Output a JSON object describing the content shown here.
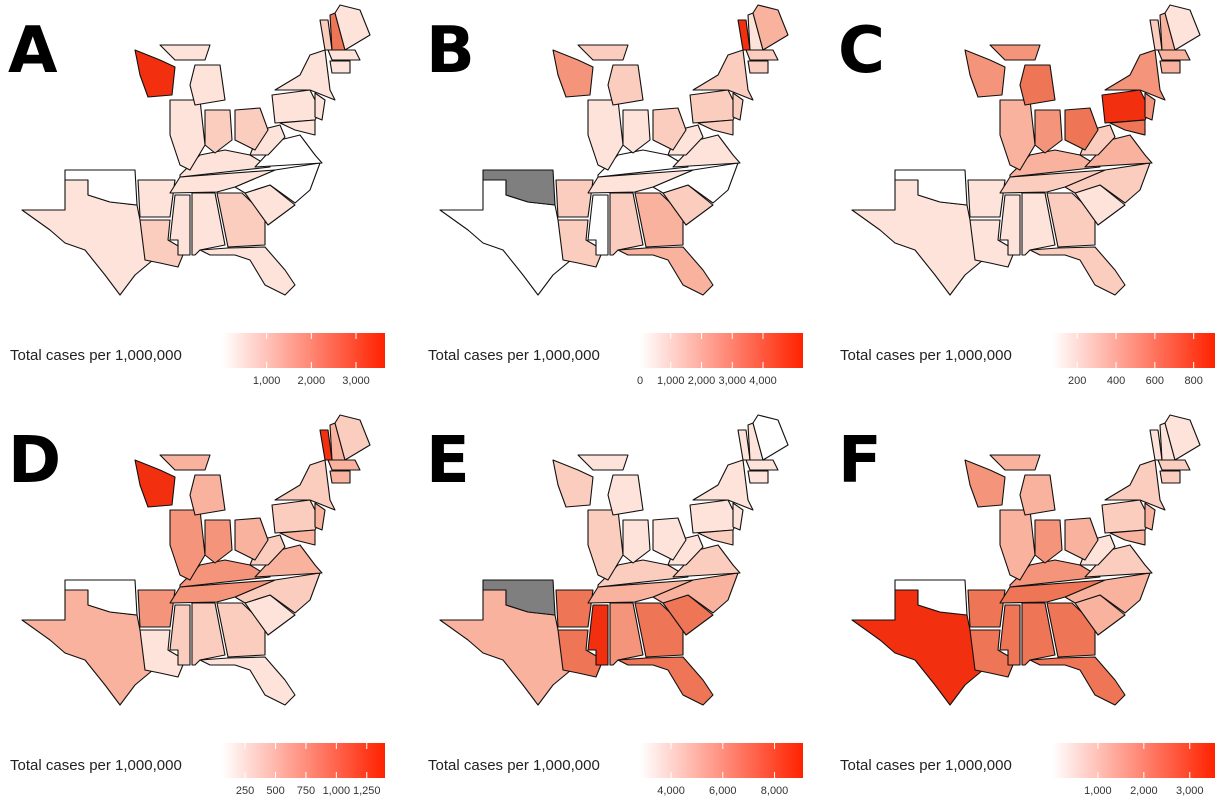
{
  "panels": [
    {
      "label": "A",
      "legend_title": "Total cases per 1,000,000",
      "scale": {
        "lim": [
          0,
          3650
        ],
        "ticks": [
          {
            "value": 1000,
            "label": "1,000"
          },
          {
            "value": 2000,
            "label": "2,000"
          },
          {
            "value": 3000,
            "label": "3,000"
          }
        ],
        "colors": [
          "#ffffff",
          "#ff2200"
        ]
      },
      "fills": [
        "#fde3da",
        "#ffffff",
        "#fde3da",
        "#fbcdbf",
        "#fde3da",
        "#fde3da",
        "#fbcdbf",
        "#fde3da",
        "#fde3da",
        "#ffffff",
        "#fde3da",
        "#fde3da",
        "#ffffff",
        "#fde3da",
        "#fbcdbf",
        "#fbcdbf",
        "#fde3da",
        "#f2300f",
        "#fde3da",
        "#fde3da",
        "#fde3da",
        "#fde3da",
        "#fbcdbf",
        "#ee7555",
        "#fde3da",
        "#fde3da",
        "#fde3da",
        "#fde3da",
        "#fde3da"
      ]
    },
    {
      "label": "B",
      "legend_title": "Total cases per 1,000,000",
      "scale": {
        "lim": [
          0,
          5300
        ],
        "ticks": [
          0,
          {
            "value": 1000,
            "label": "1,000"
          },
          {
            "value": 2000,
            "label": "2,000"
          },
          {
            "value": 3000,
            "label": "3,000"
          },
          {
            "value": 4000,
            "label": "4,000"
          }
        ],
        "colors": [
          "#ffffff",
          "#ff2200"
        ]
      },
      "fills": [
        "#ffffff",
        "#7f7f7f",
        "#fbcdbf",
        "#fbcdbf",
        "#ffffff",
        "#fbcdbf",
        "#f8b29e",
        "#f8b29e",
        "#fbcdbf",
        "#ffffff",
        "#fde3da",
        "#ffffff",
        "#fde3da",
        "#fde3da",
        "#fbcdbf",
        "#fde3da",
        "#fde3da",
        "#f4957b",
        "#fbcdbf",
        "#fbcdbf",
        "#fbcdbf",
        "#fbcdbf",
        "#f2300f",
        "#fde3da",
        "#f8b29e",
        "#fbcdbf",
        "#fbcdbf",
        "#fbcdbf",
        "#fbcdbf"
      ]
    },
    {
      "label": "C",
      "legend_title": "Total cases per 1,000,000",
      "scale": {
        "lim": [
          70,
          910
        ],
        "ticks": [
          200,
          400,
          600,
          800
        ],
        "colors": [
          "#ffffff",
          "#ff2200"
        ]
      },
      "fills": [
        "#fde3da",
        "#ffffff",
        "#fde3da",
        "#fde3da",
        "#fde3da",
        "#fde3da",
        "#fbcdbf",
        "#fbcdbf",
        "#fde3da",
        "#fbcdbf",
        "#fbcdbf",
        "#f8b29e",
        "#f8b29e",
        "#fbcdbf",
        "#ee7555",
        "#f4957b",
        "#f8b29e",
        "#f4957b",
        "#ee7555",
        "#f4957b",
        "#f2300f",
        "#f4957b",
        "#fbcdbf",
        "#f8b29e",
        "#fde3da",
        "#f8b29e",
        "#f8b29e",
        "#f4957b",
        "#ee7555"
      ]
    },
    {
      "label": "D",
      "legend_title": "Total cases per 1,000,000",
      "scale": {
        "lim": [
          60,
          1400
        ],
        "ticks": [
          250,
          500,
          750,
          {
            "value": 1000,
            "label": "1,000"
          },
          {
            "value": 1250,
            "label": "1,250"
          }
        ],
        "colors": [
          "#ffffff",
          "#ff2200"
        ]
      },
      "fills": [
        "#f8b29e",
        "#ffffff",
        "#f4957b",
        "#fde3da",
        "#fbcdbf",
        "#fbcdbf",
        "#fbcdbf",
        "#fde3da",
        "#fde3da",
        "#fbcdbf",
        "#f4957b",
        "#f4957b",
        "#f8b29e",
        "#fbcdbf",
        "#f8b29e",
        "#f4957b",
        "#f4957b",
        "#f2300f",
        "#f8b29e",
        "#f8b29e",
        "#fbcdbf",
        "#fbcdbf",
        "#f2300f",
        "#f8b29e",
        "#fbcdbf",
        "#f8b29e",
        "#f8b29e",
        "#f8b29e",
        "#f8b29e"
      ]
    },
    {
      "label": "E",
      "legend_title": "Total cases per 1,000,000",
      "scale": {
        "lim": [
          2800,
          9100
        ],
        "ticks": [
          {
            "value": 4000,
            "label": "4,000"
          },
          {
            "value": 6000,
            "label": "6,000"
          },
          {
            "value": 8000,
            "label": "8,000"
          }
        ],
        "colors": [
          "#ffffff",
          "#ff2200"
        ]
      },
      "fills": [
        "#f8b29e",
        "#7f7f7f",
        "#ee7555",
        "#ee7555",
        "#f2300f",
        "#f4957b",
        "#ee7555",
        "#ee7555",
        "#ee7555",
        "#f8b29e",
        "#f8b29e",
        "#fbcdbf",
        "#fbcdbf",
        "#fde3da",
        "#fde3da",
        "#fde3da",
        "#fbcdbf",
        "#fbcdbf",
        "#fde3da",
        "#fde3da",
        "#fde3da",
        "#fde3da",
        "#fde3da",
        "#fde3da",
        "#ffffff",
        "#fde3da",
        "#fde3da",
        "#fde3da",
        "#fbcdbf"
      ]
    },
    {
      "label": "F",
      "legend_title": "Total cases per 1,000,000",
      "scale": {
        "lim": [
          0,
          3550
        ],
        "ticks": [
          {
            "value": 1000,
            "label": "1,000"
          },
          {
            "value": 2000,
            "label": "2,000"
          },
          {
            "value": 3000,
            "label": "3,000"
          }
        ],
        "colors": [
          "#ffffff",
          "#ff2200"
        ]
      },
      "fills": [
        "#f2300f",
        "#ffffff",
        "#ee7555",
        "#ee7555",
        "#ee7555",
        "#ee7555",
        "#ee7555",
        "#ee7555",
        "#f8b29e",
        "#f8b29e",
        "#ee7555",
        "#f4957b",
        "#fbcdbf",
        "#fde3da",
        "#f8b29e",
        "#f4957b",
        "#f8b29e",
        "#f4957b",
        "#f8b29e",
        "#f8b29e",
        "#fbcdbf",
        "#fbcdbf",
        "#fde3da",
        "#fde3da",
        "#fde3da",
        "#fbcdbf",
        "#fbcdbf",
        "#f8b29e",
        "#f8b29e"
      ]
    }
  ]
}
